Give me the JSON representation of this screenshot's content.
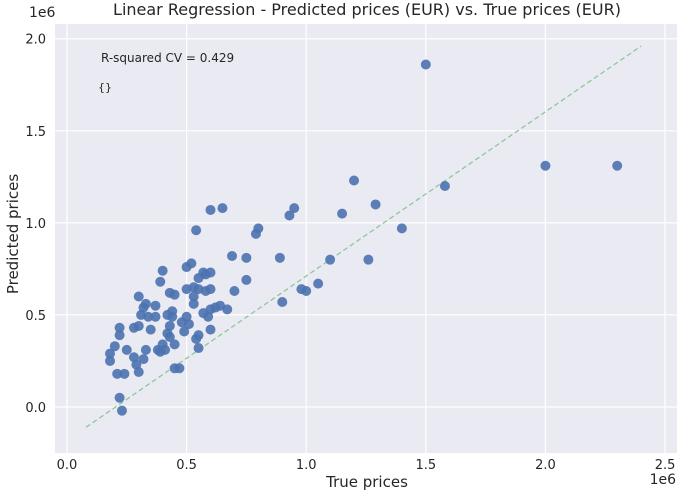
{
  "chart_data": {
    "type": "scatter",
    "title": "Linear Regression - Predicted prices (EUR) vs. True prices (EUR)",
    "xlabel": "True prices",
    "ylabel": "Predicted prices",
    "x_offset_label": "1e6",
    "y_offset_label": "1e6",
    "xlim": [
      -0.05,
      2.55
    ],
    "ylim": [
      -0.25,
      2.08
    ],
    "x_ticks": [
      0.0,
      0.5,
      1.0,
      1.5,
      2.0,
      2.5
    ],
    "x_tick_labels": [
      "0.0",
      "0.5",
      "1.0",
      "1.5",
      "2.0",
      "2.5"
    ],
    "y_ticks": [
      0.0,
      0.5,
      1.0,
      1.5,
      2.0
    ],
    "y_tick_labels": [
      "0.0",
      "0.5",
      "1.0",
      "1.5",
      "2.0"
    ],
    "grid": true,
    "annotations": [
      "R-squared CV = 0.429",
      "{}"
    ],
    "colors": {
      "background": "#eaeaf2",
      "grid": "#ffffff",
      "points": "#4c72b0",
      "reference_line": "#8fc79a"
    },
    "reference_line": {
      "x": [
        0.08,
        2.4
      ],
      "y": [
        -0.11,
        1.96
      ]
    },
    "points": [
      [
        0.18,
        0.29
      ],
      [
        0.18,
        0.25
      ],
      [
        0.2,
        0.33
      ],
      [
        0.21,
        0.18
      ],
      [
        0.22,
        0.39
      ],
      [
        0.22,
        0.43
      ],
      [
        0.22,
        0.05
      ],
      [
        0.23,
        -0.02
      ],
      [
        0.24,
        0.18
      ],
      [
        0.25,
        0.31
      ],
      [
        0.28,
        0.27
      ],
      [
        0.28,
        0.43
      ],
      [
        0.29,
        0.23
      ],
      [
        0.3,
        0.6
      ],
      [
        0.3,
        0.19
      ],
      [
        0.3,
        0.44
      ],
      [
        0.31,
        0.5
      ],
      [
        0.32,
        0.54
      ],
      [
        0.32,
        0.26
      ],
      [
        0.33,
        0.56
      ],
      [
        0.33,
        0.31
      ],
      [
        0.34,
        0.49
      ],
      [
        0.35,
        0.42
      ],
      [
        0.37,
        0.49
      ],
      [
        0.37,
        0.55
      ],
      [
        0.38,
        0.31
      ],
      [
        0.39,
        0.68
      ],
      [
        0.39,
        0.3
      ],
      [
        0.4,
        0.74
      ],
      [
        0.4,
        0.34
      ],
      [
        0.41,
        0.31
      ],
      [
        0.42,
        0.4
      ],
      [
        0.42,
        0.5
      ],
      [
        0.43,
        0.44
      ],
      [
        0.43,
        0.38
      ],
      [
        0.43,
        0.62
      ],
      [
        0.44,
        0.49
      ],
      [
        0.44,
        0.52
      ],
      [
        0.45,
        0.21
      ],
      [
        0.45,
        0.34
      ],
      [
        0.45,
        0.61
      ],
      [
        0.47,
        0.21
      ],
      [
        0.48,
        0.46
      ],
      [
        0.49,
        0.41
      ],
      [
        0.5,
        0.49
      ],
      [
        0.5,
        0.64
      ],
      [
        0.5,
        0.76
      ],
      [
        0.51,
        0.45
      ],
      [
        0.52,
        0.78
      ],
      [
        0.53,
        0.56
      ],
      [
        0.53,
        0.65
      ],
      [
        0.53,
        0.6
      ],
      [
        0.54,
        0.96
      ],
      [
        0.54,
        0.37
      ],
      [
        0.55,
        0.32
      ],
      [
        0.55,
        0.39
      ],
      [
        0.55,
        0.7
      ],
      [
        0.55,
        0.64
      ],
      [
        0.57,
        0.73
      ],
      [
        0.57,
        0.51
      ],
      [
        0.58,
        0.63
      ],
      [
        0.58,
        0.72
      ],
      [
        0.59,
        0.49
      ],
      [
        0.6,
        0.42
      ],
      [
        0.6,
        0.53
      ],
      [
        0.6,
        0.64
      ],
      [
        0.6,
        0.73
      ],
      [
        0.6,
        1.07
      ],
      [
        0.62,
        0.54
      ],
      [
        0.64,
        0.55
      ],
      [
        0.65,
        1.08
      ],
      [
        0.67,
        0.53
      ],
      [
        0.69,
        0.82
      ],
      [
        0.7,
        0.63
      ],
      [
        0.75,
        0.69
      ],
      [
        0.75,
        0.81
      ],
      [
        0.79,
        0.94
      ],
      [
        0.8,
        0.97
      ],
      [
        0.89,
        0.81
      ],
      [
        0.9,
        0.57
      ],
      [
        0.93,
        1.04
      ],
      [
        0.95,
        1.08
      ],
      [
        0.98,
        0.64
      ],
      [
        1.0,
        0.63
      ],
      [
        1.05,
        0.67
      ],
      [
        1.1,
        0.8
      ],
      [
        1.15,
        1.05
      ],
      [
        1.2,
        1.23
      ],
      [
        1.26,
        0.8
      ],
      [
        1.29,
        1.1
      ],
      [
        1.4,
        0.97
      ],
      [
        1.5,
        1.86
      ],
      [
        1.58,
        1.2
      ],
      [
        2.0,
        1.31
      ],
      [
        2.3,
        1.31
      ]
    ]
  }
}
